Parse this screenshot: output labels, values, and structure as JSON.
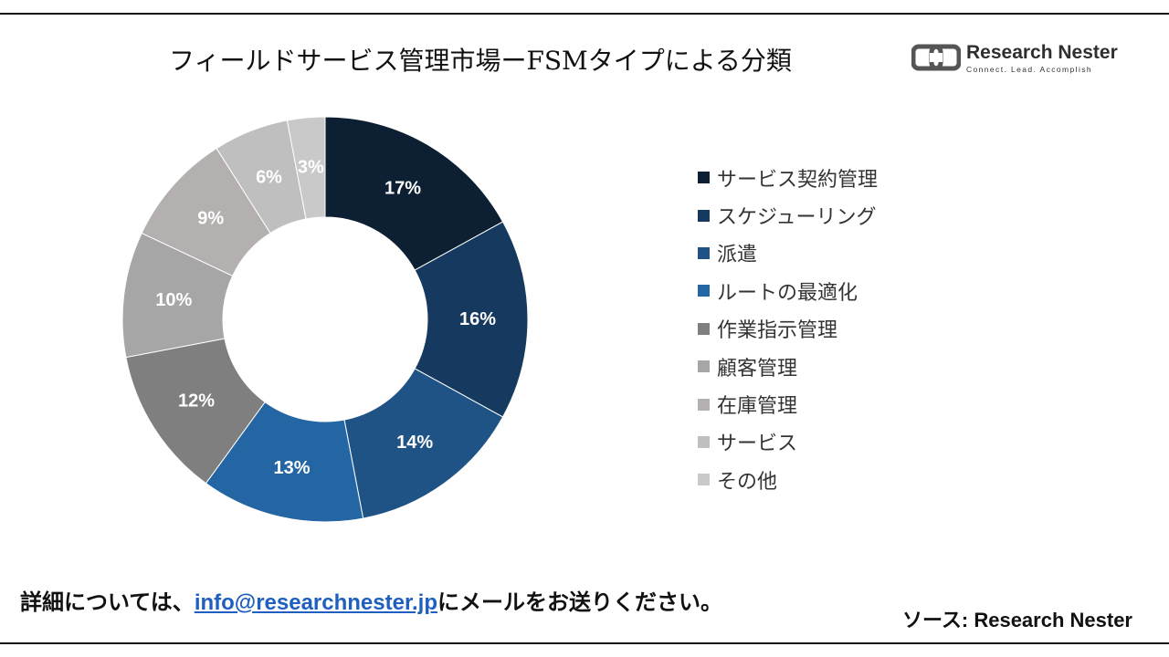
{
  "header": {
    "title": "フィールドサービス管理市場ーFSMタイプによる分類",
    "logo_name": "Research Nester",
    "logo_tagline": "Connect. Lead. Accomplish"
  },
  "footer": {
    "note_prefix": "詳細については、",
    "email": "info@researchnester.jp",
    "note_suffix": "にメールをお送りください。",
    "source": "ソース: Research Nester"
  },
  "chart_data": {
    "type": "pie",
    "title": "フィールドサービス管理市場ーFSMタイプによる分類",
    "donut": true,
    "legend_position": "right",
    "categories": [
      "サービス契約管理",
      "スケジューリング",
      "派遣",
      "ルートの最適化",
      "作業指示管理",
      "顧客管理",
      "在庫管理",
      "サービス",
      "その他"
    ],
    "values": [
      17,
      16,
      14,
      13,
      12,
      10,
      9,
      6,
      3
    ],
    "value_labels": [
      "17%",
      "16%",
      "14%",
      "13%",
      "12%",
      "10%",
      "9%",
      "6%",
      "3%"
    ],
    "colors": [
      "#0d1f33",
      "#163a5f",
      "#1f5386",
      "#2466a3",
      "#7f7f7f",
      "#a6a6a6",
      "#b4b0b0",
      "#bfbfbf",
      "#c9c9c9"
    ]
  }
}
